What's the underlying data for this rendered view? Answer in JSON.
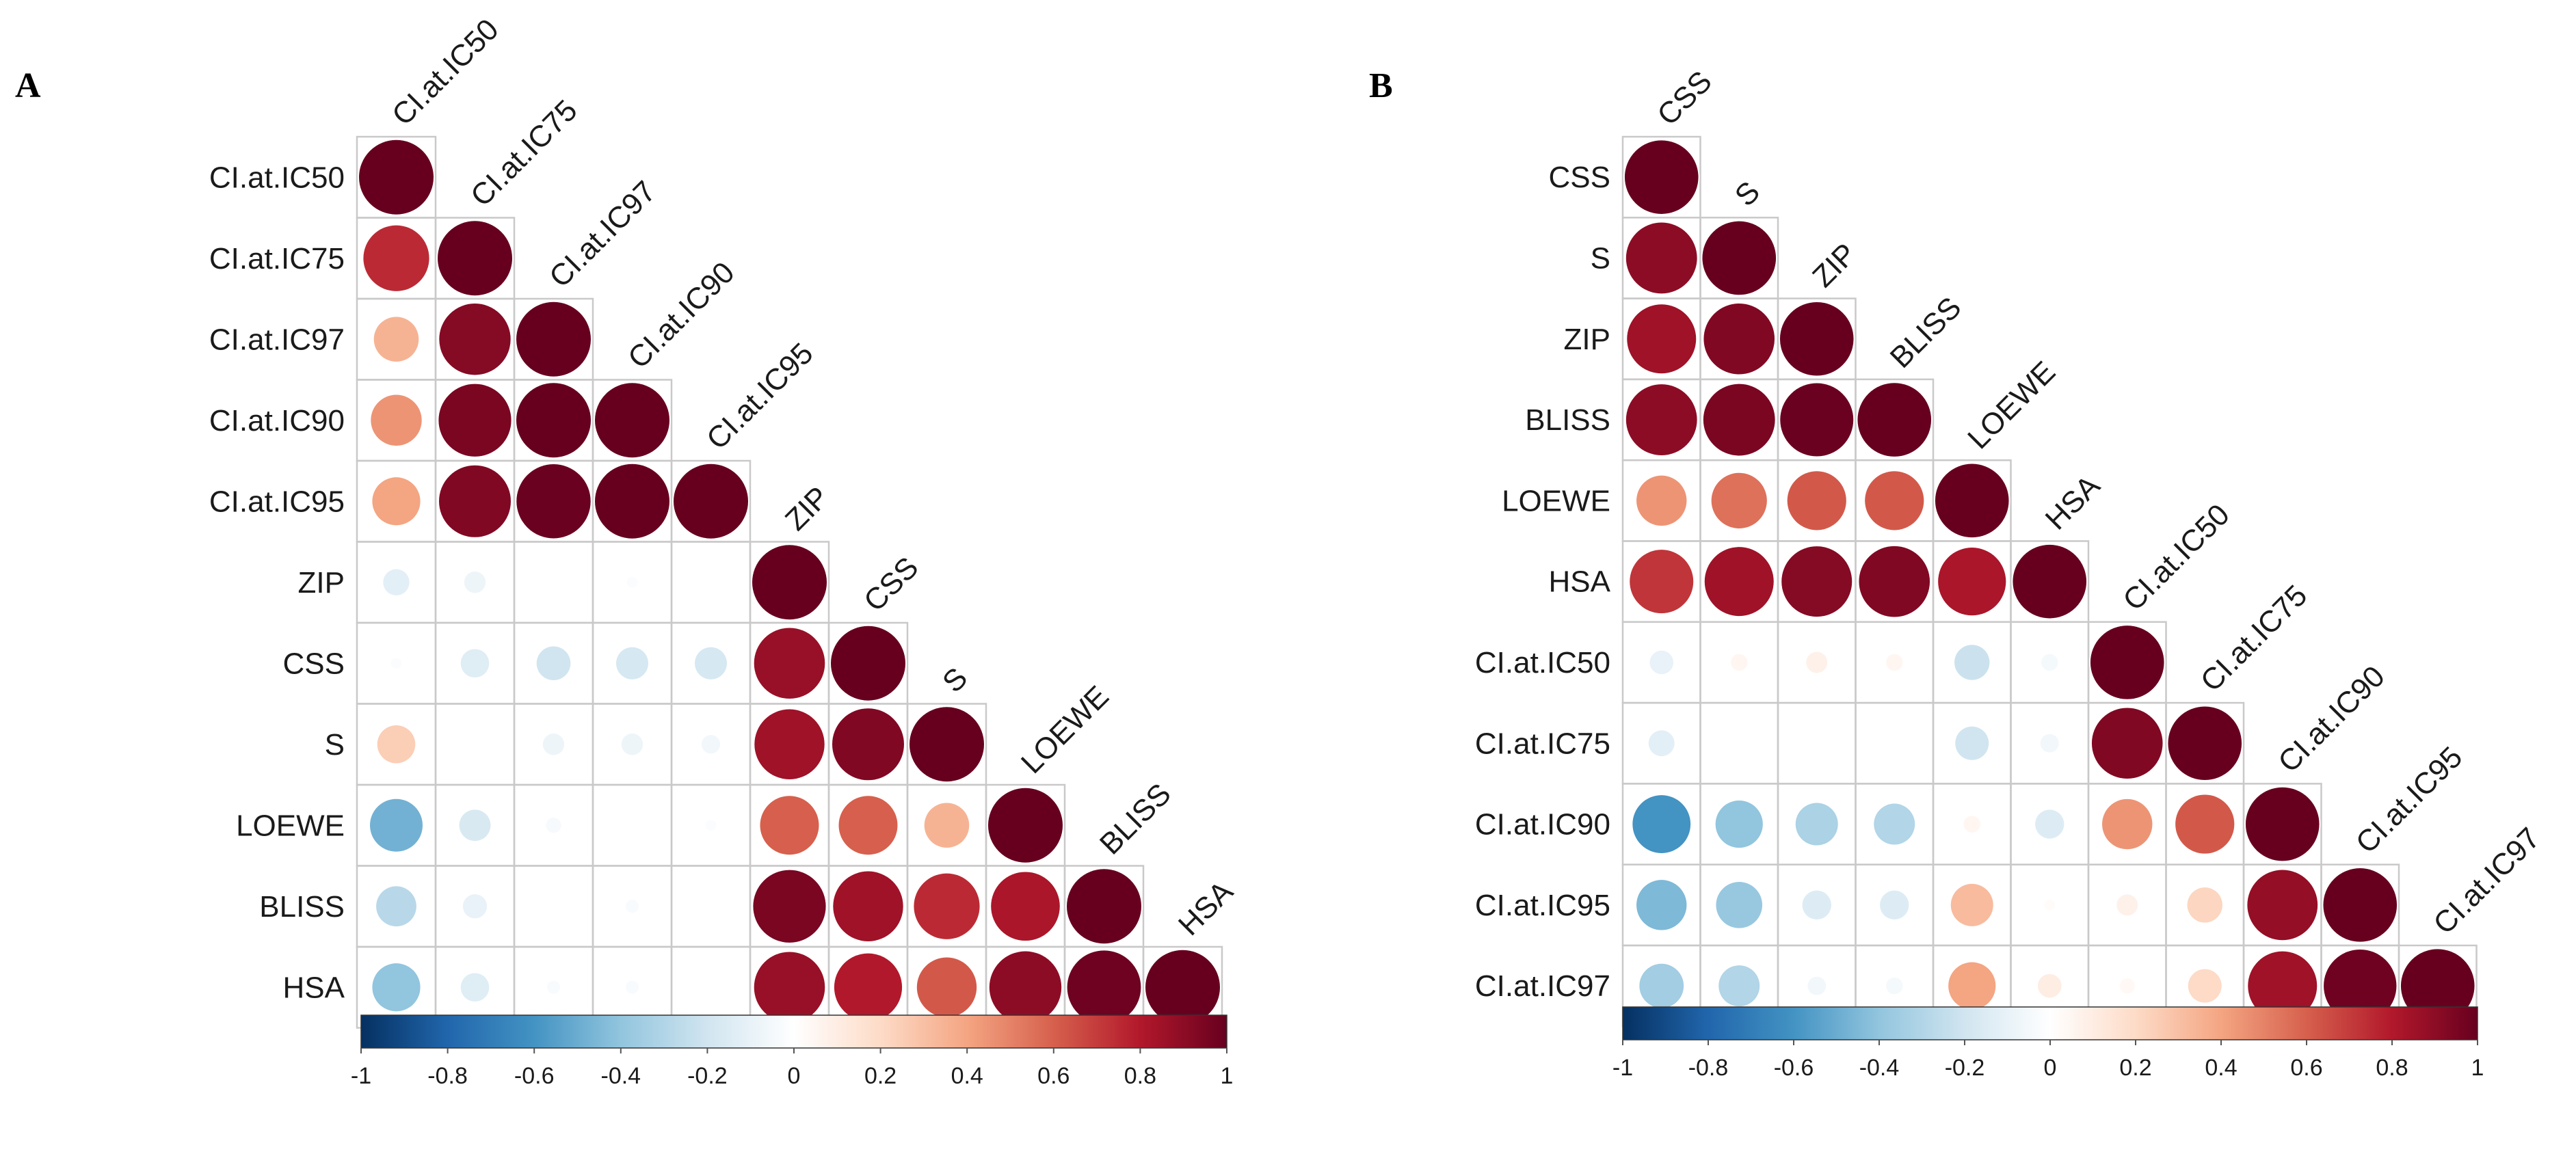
{
  "chart_data": [
    {
      "type": "heatmap",
      "panel": "A",
      "variables": [
        "CI.at.IC50",
        "CI.at.IC75",
        "CI.at.IC97",
        "CI.at.IC90",
        "CI.at.IC95",
        "ZIP",
        "CSS",
        "S",
        "LOEWE",
        "BLISS",
        "HSA"
      ],
      "lower_triangle": [
        [
          1.0
        ],
        [
          0.75,
          1.0
        ],
        [
          0.35,
          0.92,
          1.0
        ],
        [
          0.45,
          0.95,
          1.0,
          1.0
        ],
        [
          0.4,
          0.93,
          0.99,
          1.0,
          1.0
        ],
        [
          -0.12,
          -0.08,
          0.0,
          -0.02,
          0.0,
          1.0
        ],
        [
          -0.02,
          -0.14,
          -0.2,
          -0.18,
          -0.18,
          0.87,
          1.0
        ],
        [
          0.25,
          0.0,
          -0.08,
          -0.08,
          -0.06,
          0.85,
          0.93,
          1.0
        ],
        [
          -0.48,
          -0.17,
          -0.04,
          0.0,
          -0.02,
          0.6,
          0.6,
          0.35,
          1.0
        ],
        [
          -0.28,
          -0.1,
          0.0,
          -0.03,
          0.0,
          0.95,
          0.85,
          0.75,
          0.82,
          1.0
        ],
        [
          -0.4,
          -0.14,
          -0.03,
          -0.03,
          0.0,
          0.87,
          0.8,
          0.62,
          0.9,
          0.98,
          1.0
        ]
      ],
      "colorbar": {
        "range": [
          -1,
          1
        ],
        "ticks": [
          "-1",
          "-0.8",
          "-0.6",
          "-0.4",
          "-0.2",
          "0",
          "0.2",
          "0.4",
          "0.6",
          "0.8",
          "1"
        ]
      }
    },
    {
      "type": "heatmap",
      "panel": "B",
      "variables": [
        "CSS",
        "S",
        "ZIP",
        "BLISS",
        "LOEWE",
        "HSA",
        "CI.at.IC50",
        "CI.at.IC75",
        "CI.at.IC90",
        "CI.at.IC95",
        "CI.at.IC97"
      ],
      "lower_triangle": [
        [
          1.0
        ],
        [
          0.9,
          1.0
        ],
        [
          0.85,
          0.93,
          1.0
        ],
        [
          0.9,
          0.95,
          0.99,
          1.0
        ],
        [
          0.45,
          0.55,
          0.62,
          0.62,
          1.0
        ],
        [
          0.72,
          0.85,
          0.92,
          0.93,
          0.82,
          1.0
        ],
        [
          -0.1,
          0.05,
          0.08,
          0.05,
          -0.22,
          -0.05,
          1.0
        ],
        [
          -0.12,
          0.0,
          0.0,
          0.0,
          -0.2,
          -0.06,
          0.93,
          1.0
        ],
        [
          -0.6,
          -0.4,
          -0.32,
          -0.3,
          0.05,
          -0.15,
          0.45,
          0.62,
          1.0
        ],
        [
          -0.45,
          -0.38,
          -0.15,
          -0.15,
          0.32,
          0.02,
          0.08,
          0.22,
          0.88,
          1.0
        ],
        [
          -0.35,
          -0.3,
          -0.06,
          -0.05,
          0.4,
          0.1,
          0.04,
          0.2,
          0.85,
          0.98,
          1.0
        ]
      ],
      "colorbar": {
        "range": [
          -1,
          1
        ],
        "ticks": [
          "-1",
          "-0.8",
          "-0.6",
          "-0.4",
          "-0.2",
          "0",
          "0.2",
          "0.4",
          "0.6",
          "0.8",
          "1"
        ]
      }
    }
  ],
  "colors": {
    "scale": [
      "#053061",
      "#2166ac",
      "#4393c3",
      "#92c5de",
      "#d1e5f0",
      "#ffffff",
      "#fddbc7",
      "#f4a582",
      "#d6604d",
      "#b2182b",
      "#67001f"
    ],
    "grid": "#c9c9c9",
    "text": "#1a1a1a"
  }
}
